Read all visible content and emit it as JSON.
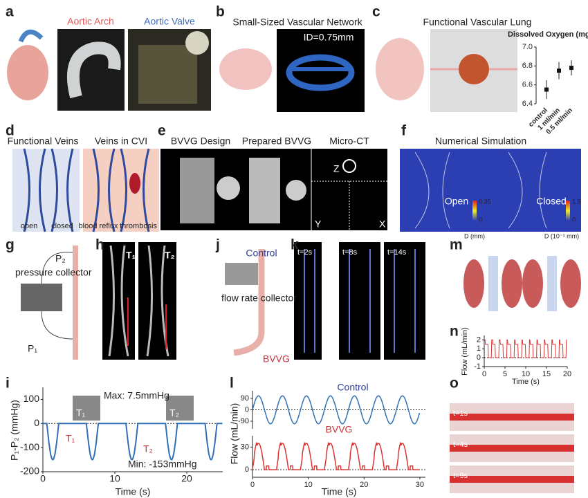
{
  "panels": {
    "a": {
      "letter": "a",
      "labels": [
        "Aortic Arch",
        "Aortic Valve"
      ]
    },
    "b": {
      "letter": "b",
      "title": "Small-Sized Vascular Network",
      "annotation": "ID=0.75mm"
    },
    "c": {
      "letter": "c",
      "title": "Functional Vascular Lung",
      "chart": {
        "title": "Dissolved Oxygen (mg/L)",
        "categories": [
          "control",
          "1 ml/min",
          "0.5 ml/min"
        ],
        "values": [
          6.55,
          6.75,
          6.78
        ],
        "errors": [
          0.1,
          0.09,
          0.08
        ],
        "ylim": [
          6.4,
          7.0
        ],
        "yticks": [
          {
            "value": 7,
            "label": "7.0"
          },
          6.8,
          6.6,
          6.4
        ]
      }
    },
    "d": {
      "letter": "d",
      "titles": [
        "Functional Veins",
        "Veins in CVI"
      ],
      "labels": [
        "open",
        "closed",
        "blood reflux",
        "thrombosis"
      ]
    },
    "e": {
      "letter": "e",
      "titles": [
        "BVVG Design",
        "Prepared BVVG",
        "Micro-CT"
      ],
      "axes": [
        "Z",
        "Y",
        "X"
      ]
    },
    "f": {
      "letter": "f",
      "title": "Numerical Simulation",
      "labels": [
        "Open",
        "Closed"
      ],
      "colorbars": [
        {
          "max": "0.35",
          "min": "0",
          "label": "D (mm)"
        },
        {
          "max": "1.5",
          "min": "0",
          "label": "D (10⁻¹ mm)"
        }
      ]
    },
    "g": {
      "letter": "g",
      "labels": [
        "P₂",
        "pressure collector",
        "P₁"
      ]
    },
    "h": {
      "letter": "h",
      "labels": [
        "T₁",
        "T₂"
      ]
    },
    "j": {
      "letter": "j",
      "labels": [
        "Control",
        "flow rate collector",
        "BVVG"
      ]
    },
    "k": {
      "letter": "k",
      "labels": [
        "t=2s",
        "t=8s",
        "t=14s"
      ]
    },
    "m": {
      "letter": "m"
    },
    "n": {
      "letter": "n",
      "chart": {
        "ylabel": "Flow (mL/min)",
        "xlabel": "Time (s)",
        "ylim": [
          -1,
          2.5
        ],
        "yticks": [
          2,
          1,
          0,
          -1
        ],
        "xlim": [
          0,
          20
        ],
        "xticks": [
          0,
          5,
          10,
          15,
          20
        ]
      }
    },
    "i": {
      "letter": "i",
      "chart": {
        "ylabel": "P₁-P₂ (mmHg)",
        "xlabel": "Time (s)",
        "ylim": [
          -200,
          150
        ],
        "yticks": [
          100,
          0,
          -100,
          -200
        ],
        "xlim": [
          0,
          25
        ],
        "xticks": [
          0,
          10,
          20
        ],
        "annotations": [
          "Max: 7.5mmHg",
          "Min: -153mmHg",
          "T₁",
          "T₂",
          "T₁",
          "T₂"
        ]
      }
    },
    "l": {
      "letter": "l",
      "chart": {
        "ylabel": "Flow (mL/min)",
        "xlabel": "Time (s)",
        "series": [
          "Control",
          "BVVG"
        ],
        "ylim_top": [
          -150,
          150
        ],
        "yticks_top": [
          90,
          0,
          -90
        ],
        "ylim_bottom": [
          -10,
          45
        ],
        "yticks_bottom": [
          30,
          0
        ],
        "xlim": [
          0,
          31
        ],
        "xticks": [
          0,
          10,
          20,
          30
        ]
      }
    },
    "o": {
      "letter": "o",
      "labels": [
        "t=1s",
        "t=4s",
        "t=9s"
      ]
    }
  }
}
